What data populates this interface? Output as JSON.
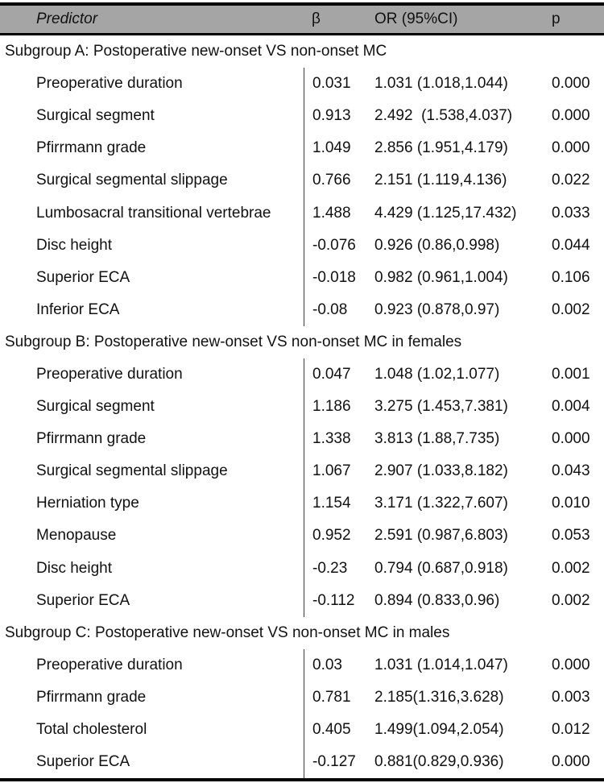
{
  "table": {
    "columns": [
      "Predictor",
      "β",
      "OR (95%CI)",
      "p"
    ],
    "sections": [
      {
        "title": "Subgroup A: Postoperative new-onset VS non-onset MC",
        "rows": [
          {
            "predictor": "Preoperative duration",
            "beta": "0.031",
            "or": "1.031 (1.018,1.044)",
            "p": "0.000"
          },
          {
            "predictor": "Surgical segment",
            "beta": "0.913",
            "or": "2.492  (1.538,4.037)",
            "p": "0.000"
          },
          {
            "predictor": "Pfirrmann grade",
            "beta": "1.049",
            "or": "2.856 (1.951,4.179)",
            "p": "0.000"
          },
          {
            "predictor": "Surgical segmental slippage",
            "beta": "0.766",
            "or": "2.151 (1.119,4.136)",
            "p": "0.022"
          },
          {
            "predictor": "Lumbosacral transitional vertebrae",
            "beta": "1.488",
            "or": "4.429 (1.125,17.432)",
            "p": "0.033"
          },
          {
            "predictor": "Disc height",
            "beta": "-0.076",
            "or": "0.926 (0.86,0.998)",
            "p": "0.044"
          },
          {
            "predictor": "Superior ECA",
            "beta": "-0.018",
            "or": "0.982 (0.961,1.004)",
            "p": "0.106"
          },
          {
            "predictor": "Inferior ECA",
            "beta": "-0.08",
            "or": "0.923 (0.878,0.97)",
            "p": "0.002"
          }
        ]
      },
      {
        "title": "Subgroup B: Postoperative new-onset VS non-onset MC in females",
        "rows": [
          {
            "predictor": "Preoperative duration",
            "beta": "0.047",
            "or": "1.048 (1.02,1.077)",
            "p": "0.001"
          },
          {
            "predictor": "Surgical segment",
            "beta": "1.186",
            "or": "3.275 (1.453,7.381)",
            "p": "0.004"
          },
          {
            "predictor": "Pfirrmann grade",
            "beta": "1.338",
            "or": "3.813 (1.88,7.735)",
            "p": "0.000"
          },
          {
            "predictor": "Surgical segmental slippage",
            "beta": "1.067",
            "or": "2.907 (1.033,8.182)",
            "p": "0.043"
          },
          {
            "predictor": "Herniation type",
            "beta": "1.154",
            "or": "3.171 (1.322,7.607)",
            "p": "0.010"
          },
          {
            "predictor": "Menopause",
            "beta": "0.952",
            "or": "2.591 (0.987,6.803)",
            "p": "0.053"
          },
          {
            "predictor": "Disc height",
            "beta": "-0.23",
            "or": "0.794 (0.687,0.918)",
            "p": "0.002"
          },
          {
            "predictor": "Superior ECA",
            "beta": "-0.112",
            "or": "0.894 (0.833,0.96)",
            "p": "0.002"
          }
        ]
      },
      {
        "title": "Subgroup C: Postoperative new-onset VS non-onset MC in males",
        "rows": [
          {
            "predictor": "Preoperative duration",
            "beta": "0.03",
            "or": "1.031 (1.014,1.047)",
            "p": "0.000"
          },
          {
            "predictor": "Pfirrmann grade",
            "beta": "0.781",
            "or": "2.185(1.316,3.628)",
            "p": "0.003"
          },
          {
            "predictor": "Total cholesterol",
            "beta": "0.405",
            "or": "1.499(1.094,2.054)",
            "p": "0.012"
          },
          {
            "predictor": "Superior ECA",
            "beta": "-0.127",
            "or": "0.881(0.829,0.936)",
            "p": "0.000"
          }
        ]
      }
    ]
  }
}
